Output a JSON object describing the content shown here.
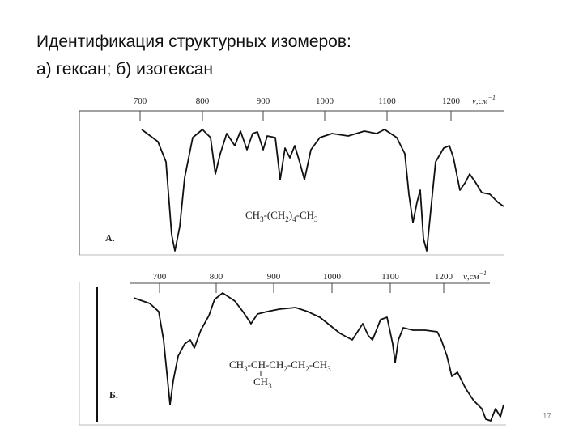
{
  "title": [
    "Идентификация структурных изомеров:",
    "а) гексан; б) изогексан"
  ],
  "spectra": [
    {
      "axis_ticks": [
        "700",
        "800",
        "900",
        "1000",
        "1100",
        "1200"
      ],
      "unit": [
        "ν,см",
        "−1"
      ],
      "formula": [
        "CH",
        "3",
        "-(CH",
        "2",
        ")",
        "4",
        "-CH",
        "3"
      ],
      "label": "А."
    },
    {
      "axis_ticks": [
        "700",
        "800",
        "900",
        "1000",
        "1100",
        "1200"
      ],
      "unit": [
        "ν,см",
        "−1"
      ],
      "formula": [
        "CH",
        "3",
        "-CH-CH",
        "2",
        "-CH",
        "2",
        "-CH",
        "3"
      ],
      "branch": [
        "CH",
        "3"
      ],
      "label": "Б."
    }
  ],
  "page_number": "17"
}
